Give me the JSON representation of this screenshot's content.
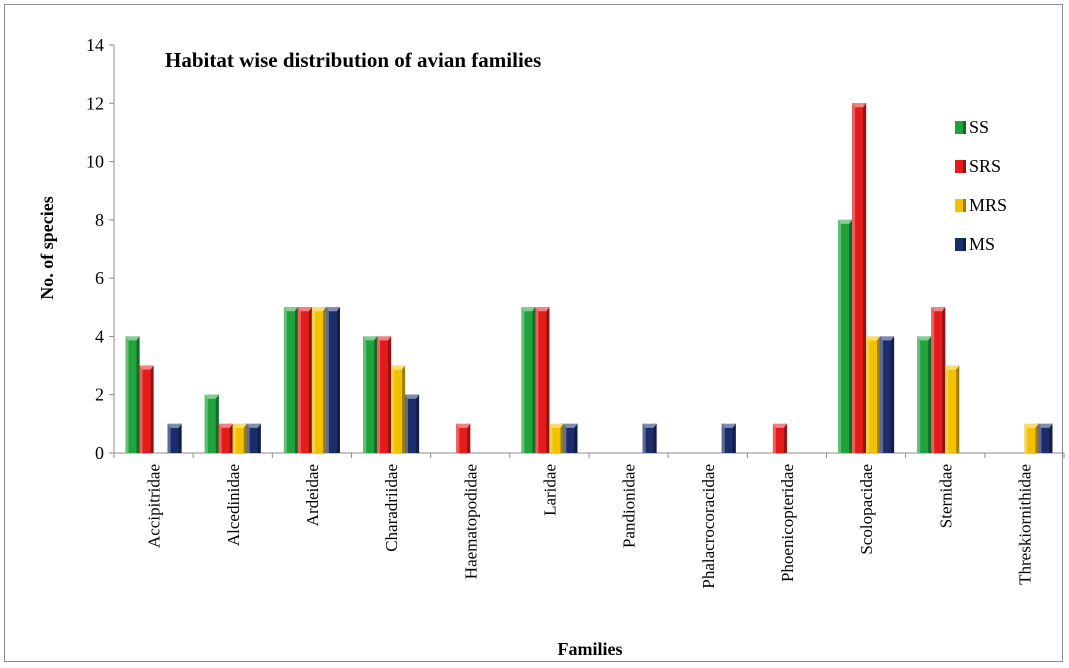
{
  "chart_data": {
    "type": "bar",
    "title": "Habitat wise distribution of avian families",
    "xlabel": "Families",
    "ylabel": "No. of species",
    "ylim": [
      0,
      14
    ],
    "yticks": [
      0,
      2,
      4,
      6,
      8,
      10,
      12,
      14
    ],
    "grid": false,
    "legend_position": "right",
    "categories": [
      "Accipitridae",
      "Alcedinidae",
      "Ardeidae",
      "Charadriidae",
      "Haematopodidae",
      "Laridae",
      "Pandionidae",
      "Phalacrocoracidae",
      "Phoenicopteridae",
      "Scolopacidae",
      "Sternidae",
      "Threskiornithidae"
    ],
    "series": [
      {
        "name": "SS",
        "color": "#1fa33a",
        "values": [
          4,
          2,
          5,
          4,
          0,
          5,
          0,
          0,
          0,
          8,
          4,
          0
        ]
      },
      {
        "name": "SRS",
        "color": "#e31b1b",
        "values": [
          3,
          1,
          5,
          4,
          1,
          5,
          0,
          0,
          1,
          12,
          5,
          0
        ]
      },
      {
        "name": "MRS",
        "color": "#f2c200",
        "values": [
          0,
          1,
          5,
          3,
          0,
          1,
          0,
          0,
          0,
          4,
          3,
          1
        ]
      },
      {
        "name": "MS",
        "color": "#1b2d6b",
        "values": [
          1,
          1,
          5,
          2,
          0,
          1,
          1,
          1,
          0,
          4,
          0,
          1
        ]
      }
    ]
  }
}
